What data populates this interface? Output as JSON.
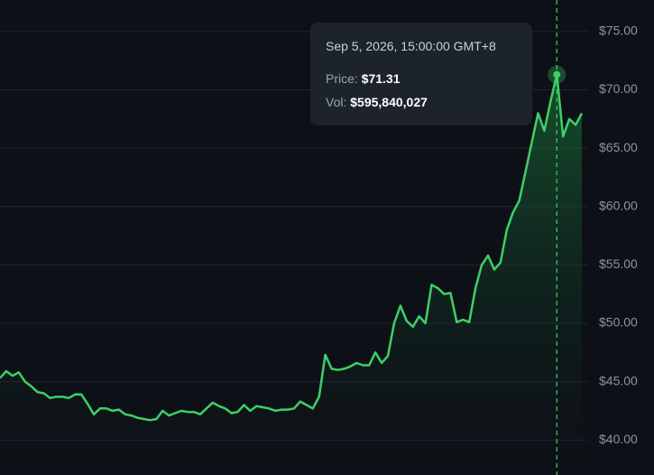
{
  "chart_data": {
    "type": "line",
    "color": "#3ecf67",
    "values": [
      45.3,
      45.9,
      45.5,
      45.8,
      45.0,
      44.6,
      44.1,
      44.0,
      43.6,
      43.7,
      43.7,
      43.6,
      43.9,
      43.9,
      43.1,
      42.2,
      42.7,
      42.7,
      42.5,
      42.6,
      42.2,
      42.1,
      41.9,
      41.8,
      41.7,
      41.8,
      42.5,
      42.1,
      42.3,
      42.5,
      42.4,
      42.4,
      42.2,
      42.7,
      43.2,
      42.9,
      42.7,
      42.3,
      42.4,
      43.0,
      42.5,
      42.9,
      42.8,
      42.7,
      42.5,
      42.6,
      42.6,
      42.7,
      43.3,
      43.0,
      42.7,
      43.7,
      47.3,
      46.1,
      46.0,
      46.1,
      46.3,
      46.6,
      46.4,
      46.4,
      47.5,
      46.6,
      47.2,
      50.0,
      51.5,
      50.2,
      49.7,
      50.6,
      50.0,
      53.3,
      53.0,
      52.5,
      52.6,
      50.1,
      50.3,
      50.1,
      53.0,
      55.0,
      55.8,
      54.6,
      55.2,
      58.0,
      59.5,
      60.5,
      63.0,
      65.5,
      68.0,
      66.5,
      69.0,
      71.31,
      66.0,
      67.5,
      67.0,
      68.0
    ],
    "ylim": [
      37,
      77.7
    ],
    "yticks": [
      {
        "value": 40,
        "label": "$40.00"
      },
      {
        "value": 45,
        "label": "$45.00"
      },
      {
        "value": 50,
        "label": "$50.00"
      },
      {
        "value": 55,
        "label": "$55.00"
      },
      {
        "value": 60,
        "label": "$60.00"
      },
      {
        "value": 65,
        "label": "$65.00"
      },
      {
        "value": 70,
        "label": "$70.00"
      },
      {
        "value": 75,
        "label": "$75.00"
      }
    ],
    "grid": true,
    "tooltip": {
      "date": "Sep 5, 2026, 15:00:00 GMT+8",
      "price_label": "Price:",
      "price": "$71.31",
      "volume_label": "Vol:",
      "volume": "$595,840,027"
    }
  }
}
